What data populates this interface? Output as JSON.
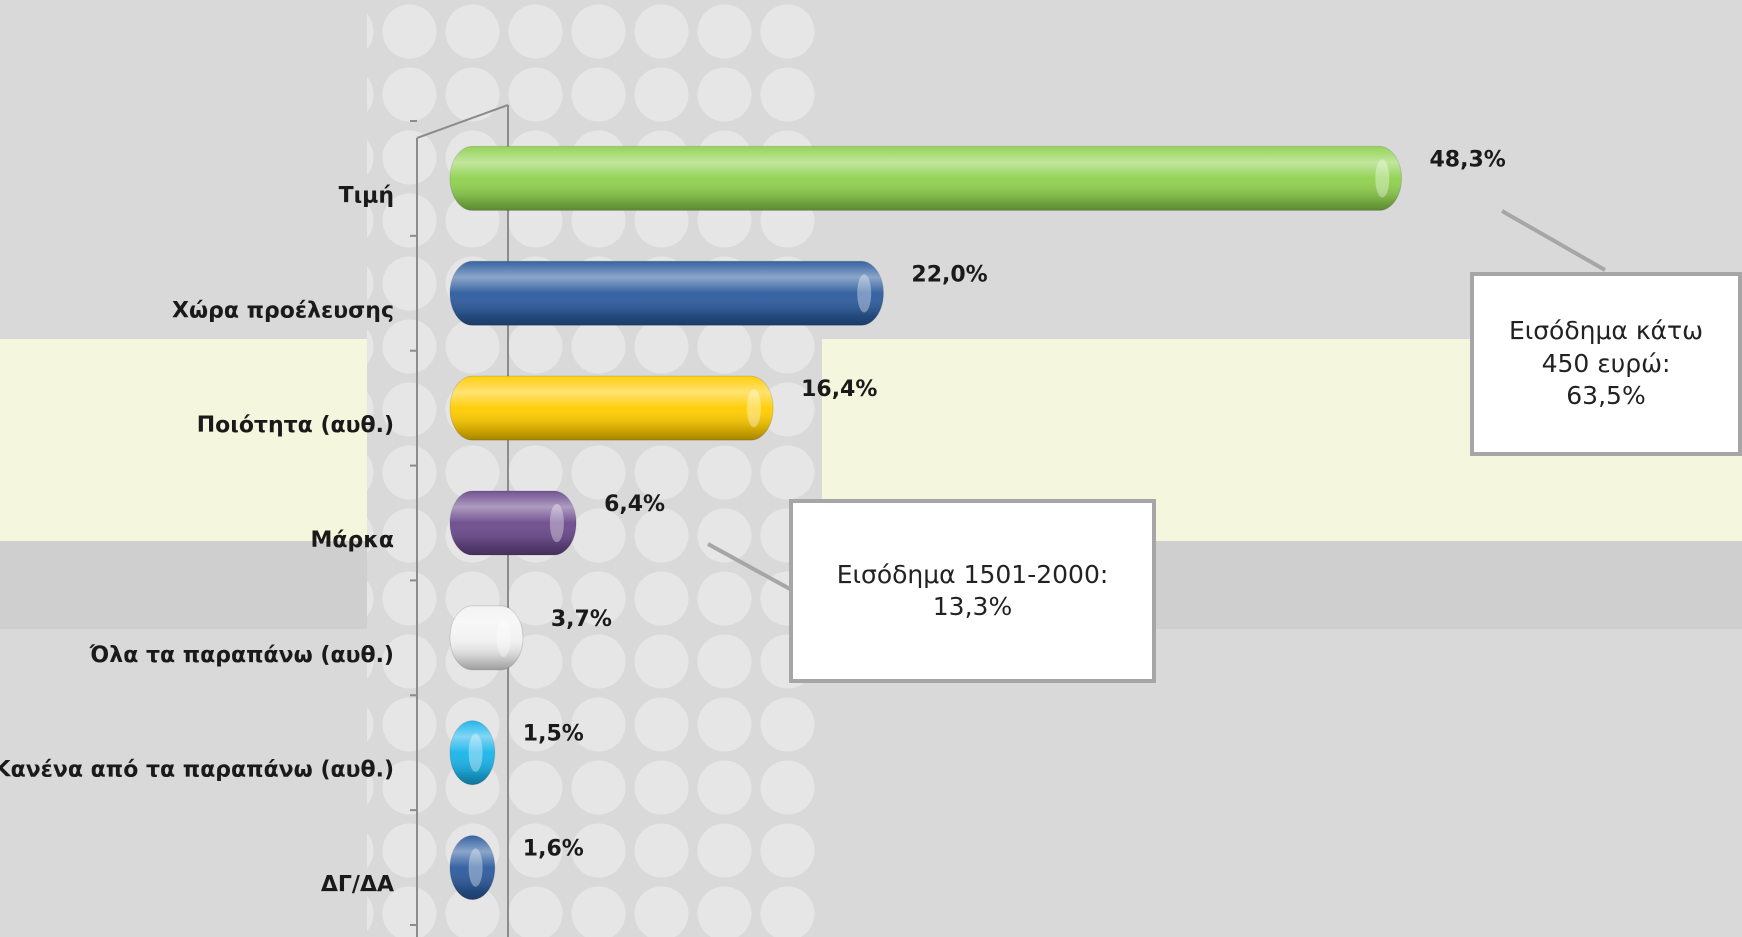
{
  "chart_data": {
    "type": "bar",
    "orientation": "horizontal",
    "categories": [
      "Τιμή",
      "Χώρα προέλευσης",
      "Ποιότητα (αυθ.)",
      "Μάρκα",
      "Όλα τα παραπάνω (αυθ.)",
      "Κανένα από τα παραπάνω (αυθ.)",
      "ΔΓ/ΔΑ"
    ],
    "values": [
      48.3,
      22.0,
      16.4,
      6.4,
      3.7,
      1.5,
      1.6
    ],
    "value_labels": [
      "48,3%",
      "22,0%",
      "16,4%",
      "6,4%",
      "3,7%",
      "1,5%",
      "1,6%"
    ],
    "colors": [
      "#8fd14f",
      "#2c5c9e",
      "#ffcc00",
      "#6b4a8c",
      "#f2f2f2",
      "#19b4ea",
      "#2c5c9e"
    ],
    "xlim": [
      0,
      60
    ],
    "annotations": [
      "Εισόδημα κάτω 450 ευρώ: 63,5%",
      "Εισόδημα 1501-2000: 13,3%"
    ]
  }
}
